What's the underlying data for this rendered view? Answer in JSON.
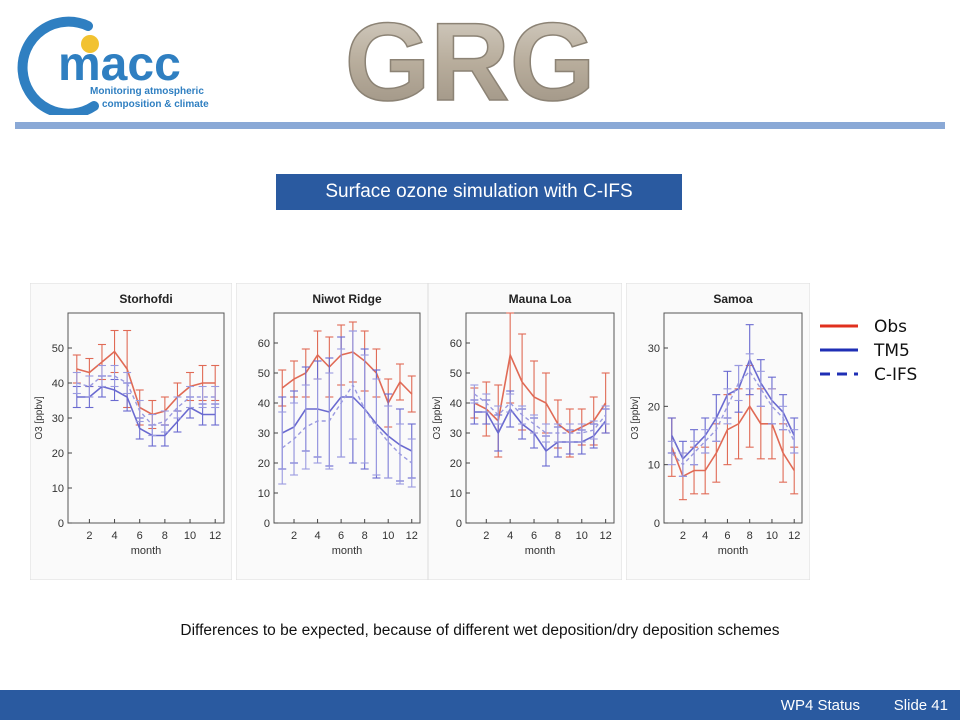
{
  "logo": {
    "name": "macc",
    "tagline_1": "Monitoring atmospheric",
    "tagline_2": "composition & climate"
  },
  "banner": {
    "text": "GRG"
  },
  "title": "Surface ozone simulation with C-IFS",
  "caption": "Differences to be expected, because of different wet deposition/dry deposition schemes",
  "footer": {
    "status": "WP4 Status",
    "slide": "Slide 41"
  },
  "legend": [
    {
      "name": "Obs",
      "color": "#e0301e",
      "style": "solid"
    },
    {
      "name": "TM5",
      "color": "#1f2fb5",
      "style": "solid"
    },
    {
      "name": "C-IFS",
      "color": "#1f2fb5",
      "style": "dashed"
    }
  ],
  "colors": {
    "obs": "#e06a55",
    "tm5": "#6a6ad0",
    "cifs": "#9a9ae0",
    "accent": "#2a5aa0"
  },
  "chart_data": [
    {
      "type": "line",
      "title": "Storhofdi",
      "xlabel": "month",
      "ylabel": "O3 [ppbv]",
      "ylim": [
        0,
        60
      ],
      "yticks": [
        0,
        10,
        20,
        30,
        40,
        50
      ],
      "xticks": [
        2,
        4,
        6,
        8,
        10,
        12
      ],
      "x": [
        1,
        2,
        3,
        4,
        5,
        6,
        7,
        8,
        9,
        10,
        11,
        12
      ],
      "series": [
        {
          "name": "Obs",
          "values": [
            44,
            43,
            46,
            49,
            44,
            33,
            31,
            32,
            36,
            39,
            40,
            40
          ],
          "err": [
            4,
            4,
            5,
            6,
            11,
            5,
            4,
            4,
            4,
            4,
            5,
            5
          ]
        },
        {
          "name": "TM5",
          "values": [
            36,
            36,
            39,
            38,
            36,
            27,
            25,
            25,
            29,
            33,
            31,
            31
          ],
          "err": [
            3,
            3,
            3,
            3,
            4,
            3,
            3,
            3,
            3,
            3,
            3,
            3
          ]
        },
        {
          "name": "C-IFS",
          "values": [
            40,
            39,
            42,
            42,
            40,
            32,
            28,
            29,
            33,
            36,
            36,
            36
          ],
          "err": [
            3,
            3,
            3,
            3,
            3,
            3,
            3,
            3,
            3,
            3,
            3,
            3
          ]
        }
      ]
    },
    {
      "type": "line",
      "title": "Niwot Ridge",
      "xlabel": "month",
      "ylabel": "",
      "ylim": [
        0,
        70
      ],
      "yticks": [
        0,
        10,
        20,
        30,
        40,
        50,
        60
      ],
      "xticks": [
        2,
        4,
        6,
        8,
        10,
        12
      ],
      "x": [
        1,
        2,
        3,
        4,
        5,
        6,
        7,
        8,
        9,
        10,
        11,
        12
      ],
      "series": [
        {
          "name": "Obs",
          "values": [
            45,
            48,
            50,
            56,
            52,
            56,
            57,
            54,
            50,
            40,
            47,
            43
          ],
          "err": [
            6,
            6,
            8,
            8,
            10,
            10,
            10,
            10,
            8,
            8,
            6,
            6
          ]
        },
        {
          "name": "TM5",
          "values": [
            30,
            32,
            38,
            38,
            37,
            42,
            42,
            38,
            33,
            29,
            26,
            24
          ],
          "err": [
            12,
            12,
            14,
            16,
            18,
            20,
            22,
            20,
            18,
            14,
            12,
            9
          ]
        },
        {
          "name": "C-IFS",
          "values": [
            25,
            28,
            32,
            34,
            34,
            40,
            46,
            38,
            32,
            27,
            23,
            20
          ],
          "err": [
            12,
            12,
            14,
            14,
            16,
            18,
            18,
            18,
            16,
            12,
            10,
            8
          ]
        }
      ]
    },
    {
      "type": "line",
      "title": "Mauna Loa",
      "xlabel": "month",
      "ylabel": "O3 [ppbv]",
      "ylim": [
        0,
        70
      ],
      "yticks": [
        0,
        10,
        20,
        30,
        40,
        50,
        60
      ],
      "xticks": [
        2,
        4,
        6,
        8,
        10,
        12
      ],
      "x": [
        1,
        2,
        3,
        4,
        5,
        6,
        7,
        8,
        9,
        10,
        11,
        12
      ],
      "series": [
        {
          "name": "Obs",
          "values": [
            40,
            38,
            34,
            56,
            47,
            42,
            40,
            33,
            30,
            32,
            34,
            40
          ],
          "err": [
            5,
            9,
            12,
            16,
            16,
            12,
            10,
            8,
            8,
            6,
            8,
            10
          ]
        },
        {
          "name": "TM5",
          "values": [
            37,
            37,
            30,
            38,
            33,
            30,
            24,
            27,
            27,
            27,
            29,
            34
          ],
          "err": [
            4,
            4,
            6,
            6,
            5,
            5,
            5,
            5,
            4,
            4,
            4,
            4
          ]
        },
        {
          "name": "C-IFS",
          "values": [
            43,
            40,
            36,
            40,
            36,
            33,
            30,
            30,
            30,
            30,
            31,
            36
          ],
          "err": [
            3,
            3,
            3,
            3,
            3,
            3,
            3,
            3,
            3,
            3,
            3,
            3
          ]
        }
      ]
    },
    {
      "type": "line",
      "title": "Samoa",
      "xlabel": "month",
      "ylabel": "O3 [ppbv]",
      "ylim": [
        0,
        36
      ],
      "yticks": [
        0,
        10,
        20,
        30
      ],
      "xticks": [
        2,
        4,
        6,
        8,
        10,
        12
      ],
      "x": [
        1,
        2,
        3,
        4,
        5,
        6,
        7,
        8,
        9,
        10,
        11,
        12
      ],
      "series": [
        {
          "name": "Obs",
          "values": [
            13,
            8,
            9,
            9,
            12,
            16,
            17,
            20,
            17,
            17,
            12,
            9
          ],
          "err": [
            5,
            4,
            4,
            4,
            5,
            6,
            6,
            7,
            6,
            6,
            5,
            4
          ]
        },
        {
          "name": "TM5",
          "values": [
            15,
            11,
            13,
            15,
            18,
            22,
            23,
            28,
            24,
            21,
            19,
            15
          ],
          "err": [
            3,
            3,
            3,
            3,
            4,
            4,
            4,
            6,
            4,
            4,
            3,
            3
          ]
        },
        {
          "name": "C-IFS",
          "values": [
            12,
            10,
            12,
            14,
            16,
            20,
            24,
            26,
            23,
            20,
            18,
            14
          ],
          "err": [
            2,
            2,
            2,
            2,
            2,
            3,
            3,
            3,
            3,
            3,
            2,
            2
          ]
        }
      ]
    }
  ]
}
